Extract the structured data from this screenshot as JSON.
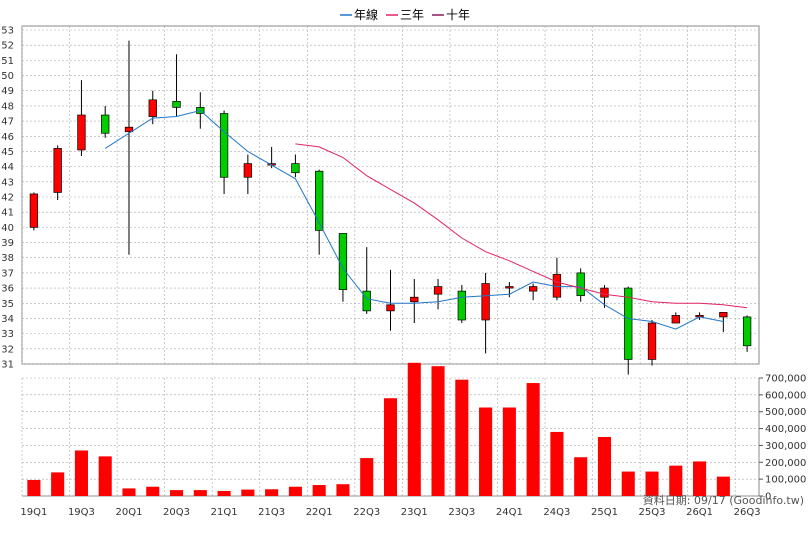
{
  "legend": [
    {
      "label": "年線",
      "color": "#1f77c8"
    },
    {
      "label": "三年",
      "color": "#e0245e"
    },
    {
      "label": "十年",
      "color": "#8b1a5a"
    }
  ],
  "footer": "資料日期: 09/17  (Goodinfo.tw)",
  "chart_data": {
    "type": "candlestick",
    "x_tick_labels": [
      "19Q1",
      "19Q3",
      "20Q1",
      "20Q3",
      "21Q1",
      "21Q3",
      "22Q1",
      "22Q3",
      "23Q1",
      "23Q3",
      "24Q1",
      "24Q3",
      "25Q1",
      "25Q3",
      "26Q1",
      "26Q3"
    ],
    "price_axis": {
      "min": 31,
      "max": 53,
      "ticks": [
        31,
        32,
        33,
        34,
        35,
        36,
        37,
        38,
        39,
        40,
        41,
        42,
        43,
        44,
        45,
        46,
        47,
        48,
        49,
        50,
        51,
        52,
        53
      ]
    },
    "volume_axis": {
      "min": 0,
      "max": 700000,
      "ticks": [
        "0",
        "100,000",
        "200,000",
        "300,000",
        "400,000",
        "500,000",
        "600,000",
        "700,000"
      ]
    },
    "candles": [
      {
        "o": 40.0,
        "c": 42.2,
        "h": 42.3,
        "l": 39.8
      },
      {
        "o": 42.3,
        "c": 45.2,
        "h": 45.4,
        "l": 41.8
      },
      {
        "o": 45.1,
        "c": 47.4,
        "h": 49.7,
        "l": 44.7
      },
      {
        "o": 47.4,
        "c": 46.2,
        "h": 48.0,
        "l": 45.9
      },
      {
        "o": 46.3,
        "c": 46.6,
        "h": 52.3,
        "l": 38.2
      },
      {
        "o": 47.3,
        "c": 48.4,
        "h": 49.0,
        "l": 46.8
      },
      {
        "o": 48.3,
        "c": 47.9,
        "h": 51.4,
        "l": 47.3
      },
      {
        "o": 47.9,
        "c": 47.5,
        "h": 48.9,
        "l": 46.5
      },
      {
        "o": 47.5,
        "c": 43.3,
        "h": 47.7,
        "l": 42.2
      },
      {
        "o": 43.3,
        "c": 44.2,
        "h": 44.8,
        "l": 42.2
      },
      {
        "o": 44.2,
        "c": 44.2,
        "h": 45.3,
        "l": 43.9
      },
      {
        "o": 44.2,
        "c": 43.6,
        "h": 44.8,
        "l": 43.3
      },
      {
        "o": 43.7,
        "c": 39.8,
        "h": 43.8,
        "l": 38.2
      },
      {
        "o": 39.6,
        "c": 35.9,
        "h": 39.6,
        "l": 35.1
      },
      {
        "o": 35.8,
        "c": 34.5,
        "h": 38.7,
        "l": 34.3
      },
      {
        "o": 34.5,
        "c": 34.9,
        "h": 37.2,
        "l": 33.2
      },
      {
        "o": 35.1,
        "c": 35.4,
        "h": 36.6,
        "l": 33.7
      },
      {
        "o": 35.6,
        "c": 36.1,
        "h": 36.6,
        "l": 34.6
      },
      {
        "o": 35.8,
        "c": 33.9,
        "h": 36.2,
        "l": 33.7
      },
      {
        "o": 33.9,
        "c": 36.3,
        "h": 37.0,
        "l": 31.7
      },
      {
        "o": 36.1,
        "c": 36.1,
        "h": 36.4,
        "l": 35.4
      },
      {
        "o": 35.8,
        "c": 36.1,
        "h": 36.3,
        "l": 35.2
      },
      {
        "o": 35.4,
        "c": 36.9,
        "h": 38.0,
        "l": 35.2
      },
      {
        "o": 37.0,
        "c": 35.5,
        "h": 37.3,
        "l": 35.1
      },
      {
        "o": 35.4,
        "c": 36.0,
        "h": 36.2,
        "l": 34.7
      },
      {
        "o": 36.0,
        "c": 31.3,
        "h": 36.1,
        "l": 30.3
      },
      {
        "o": 31.3,
        "c": 33.7,
        "h": 33.9,
        "l": 30.9
      },
      {
        "o": 33.7,
        "c": 34.2,
        "h": 34.4,
        "l": 33.7
      },
      {
        "o": 34.1,
        "c": 34.2,
        "h": 34.4,
        "l": 33.9
      },
      {
        "o": 34.1,
        "c": 34.4,
        "h": 34.4,
        "l": 33.1
      },
      {
        "o": 34.1,
        "c": 32.2,
        "h": 34.2,
        "l": 31.8
      }
    ],
    "volumes": [
      95000,
      140000,
      270000,
      235000,
      45000,
      55000,
      35000,
      35000,
      30000,
      38000,
      40000,
      55000,
      65000,
      70000,
      225000,
      580000,
      790000,
      770000,
      690000,
      525000,
      525000,
      670000,
      380000,
      230000,
      350000,
      145000,
      145000,
      180000,
      205000,
      115000,
      0
    ],
    "series": [
      {
        "name": "年線",
        "start_index": 3,
        "values": [
          45.2,
          46.2,
          47.2,
          47.3,
          47.7,
          46.3,
          45.0,
          44.1,
          43.2,
          40.3,
          37.3,
          35.3,
          35.0,
          35.0,
          35.1,
          35.4,
          35.5,
          35.6,
          36.4,
          36.1,
          36.1,
          34.9,
          34.0,
          33.8,
          33.3,
          34.1,
          33.8
        ]
      },
      {
        "name": "三年",
        "start_index": 11,
        "values": [
          45.5,
          45.3,
          44.6,
          43.4,
          42.5,
          41.6,
          40.5,
          39.3,
          38.4,
          37.8,
          37.1,
          36.4,
          36.0,
          35.6,
          35.4,
          35.1,
          35.0,
          35.0,
          34.9,
          34.7
        ]
      }
    ]
  }
}
